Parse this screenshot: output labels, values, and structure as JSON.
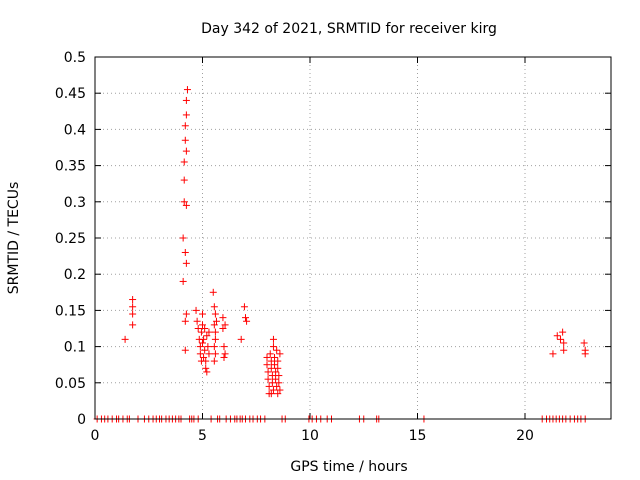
{
  "chart_data": {
    "type": "scatter",
    "title": "Day 342 of 2021, SRMTID for receiver kirg",
    "xlabel": "GPS time / hours",
    "ylabel": "SRMTID / TECUs",
    "xlim": [
      0,
      24
    ],
    "ylim": [
      0,
      0.5
    ],
    "grid": true,
    "marker": "+",
    "color": "#ff0000",
    "x_ticks": [
      0,
      5,
      10,
      15,
      20
    ],
    "x_tick_labels": [
      "0",
      "5",
      "10",
      "15",
      "20"
    ],
    "y_ticks": [
      0,
      0.05,
      0.1,
      0.15,
      0.2,
      0.25,
      0.3,
      0.35,
      0.4,
      0.45,
      0.5
    ],
    "y_tick_labels": [
      "0",
      "0.05",
      "0.1",
      "0.15",
      "0.2",
      "0.25",
      "0.3",
      "0.35",
      "0.4",
      "0.45",
      "0.5"
    ],
    "series": [
      {
        "name": "SRMTID",
        "points": [
          [
            1.4,
            0.11
          ],
          [
            1.75,
            0.165
          ],
          [
            1.75,
            0.155
          ],
          [
            1.75,
            0.145
          ],
          [
            1.75,
            0.13
          ],
          [
            4.1,
            0.19
          ],
          [
            4.1,
            0.25
          ],
          [
            4.15,
            0.3
          ],
          [
            4.15,
            0.33
          ],
          [
            4.15,
            0.355
          ],
          [
            4.2,
            0.385
          ],
          [
            4.2,
            0.405
          ],
          [
            4.25,
            0.42
          ],
          [
            4.25,
            0.44
          ],
          [
            4.3,
            0.455
          ],
          [
            4.25,
            0.37
          ],
          [
            4.25,
            0.295
          ],
          [
            4.2,
            0.23
          ],
          [
            4.25,
            0.215
          ],
          [
            4.2,
            0.135
          ],
          [
            4.2,
            0.095
          ],
          [
            4.25,
            0.145
          ],
          [
            4.7,
            0.15
          ],
          [
            4.75,
            0.135
          ],
          [
            4.8,
            0.125
          ],
          [
            4.85,
            0.11
          ],
          [
            4.9,
            0.1
          ],
          [
            4.9,
            0.09
          ],
          [
            4.95,
            0.12
          ],
          [
            5.0,
            0.145
          ],
          [
            5.0,
            0.13
          ],
          [
            5.0,
            0.105
          ],
          [
            5.05,
            0.085
          ],
          [
            5.1,
            0.125
          ],
          [
            5.1,
            0.095
          ],
          [
            5.15,
            0.08
          ],
          [
            5.15,
            0.07
          ],
          [
            5.2,
            0.065
          ],
          [
            5.2,
            0.115
          ],
          [
            5.25,
            0.1
          ],
          [
            5.3,
            0.09
          ],
          [
            4.95,
            0.08
          ],
          [
            5.05,
            0.11
          ],
          [
            5.3,
            0.12
          ],
          [
            5.5,
            0.175
          ],
          [
            5.55,
            0.155
          ],
          [
            5.6,
            0.145
          ],
          [
            5.55,
            0.13
          ],
          [
            5.6,
            0.12
          ],
          [
            5.6,
            0.11
          ],
          [
            5.55,
            0.1
          ],
          [
            5.6,
            0.09
          ],
          [
            5.55,
            0.08
          ],
          [
            5.65,
            0.135
          ],
          [
            5.95,
            0.14
          ],
          [
            5.95,
            0.125
          ],
          [
            6.0,
            0.1
          ],
          [
            6.05,
            0.09
          ],
          [
            6.0,
            0.085
          ],
          [
            6.05,
            0.13
          ],
          [
            6.8,
            0.11
          ],
          [
            6.95,
            0.155
          ],
          [
            7.0,
            0.14
          ],
          [
            7.05,
            0.135
          ],
          [
            8.0,
            0.085
          ],
          [
            8.0,
            0.075
          ],
          [
            8.05,
            0.065
          ],
          [
            8.05,
            0.055
          ],
          [
            8.1,
            0.045
          ],
          [
            8.1,
            0.035
          ],
          [
            8.15,
            0.09
          ],
          [
            8.2,
            0.08
          ],
          [
            8.2,
            0.07
          ],
          [
            8.25,
            0.06
          ],
          [
            8.25,
            0.05
          ],
          [
            8.3,
            0.04
          ],
          [
            8.3,
            0.11
          ],
          [
            8.3,
            0.1
          ],
          [
            8.35,
            0.085
          ],
          [
            8.35,
            0.075
          ],
          [
            8.4,
            0.065
          ],
          [
            8.4,
            0.055
          ],
          [
            8.45,
            0.045
          ],
          [
            8.45,
            0.095
          ],
          [
            8.5,
            0.08
          ],
          [
            8.5,
            0.07
          ],
          [
            8.55,
            0.06
          ],
          [
            8.55,
            0.05
          ],
          [
            8.6,
            0.04
          ],
          [
            8.6,
            0.09
          ],
          [
            8.2,
            0.035
          ],
          [
            8.5,
            0.035
          ],
          [
            21.3,
            0.09
          ],
          [
            21.5,
            0.115
          ],
          [
            21.65,
            0.11
          ],
          [
            21.75,
            0.12
          ],
          [
            21.8,
            0.105
          ],
          [
            21.8,
            0.095
          ],
          [
            22.75,
            0.105
          ],
          [
            22.8,
            0.095
          ],
          [
            22.8,
            0.09
          ],
          [
            0.1,
            0
          ],
          [
            0.3,
            0
          ],
          [
            0.45,
            0
          ],
          [
            0.6,
            0
          ],
          [
            0.8,
            0
          ],
          [
            1.0,
            0
          ],
          [
            1.1,
            0
          ],
          [
            1.3,
            0
          ],
          [
            1.5,
            0
          ],
          [
            1.6,
            0
          ],
          [
            2.0,
            0
          ],
          [
            2.3,
            0
          ],
          [
            2.5,
            0
          ],
          [
            2.7,
            0
          ],
          [
            2.85,
            0
          ],
          [
            3.0,
            0
          ],
          [
            3.1,
            0
          ],
          [
            3.3,
            0
          ],
          [
            3.45,
            0
          ],
          [
            3.6,
            0
          ],
          [
            3.75,
            0
          ],
          [
            3.9,
            0
          ],
          [
            4.0,
            0
          ],
          [
            4.4,
            0
          ],
          [
            4.5,
            0
          ],
          [
            4.6,
            0
          ],
          [
            4.8,
            0
          ],
          [
            5.4,
            0
          ],
          [
            5.7,
            0
          ],
          [
            5.8,
            0
          ],
          [
            6.1,
            0
          ],
          [
            6.3,
            0
          ],
          [
            6.5,
            0
          ],
          [
            6.6,
            0
          ],
          [
            6.75,
            0
          ],
          [
            6.85,
            0
          ],
          [
            7.0,
            0
          ],
          [
            7.2,
            0
          ],
          [
            7.35,
            0
          ],
          [
            7.55,
            0
          ],
          [
            7.7,
            0
          ],
          [
            7.9,
            0
          ],
          [
            8.7,
            0
          ],
          [
            8.85,
            0
          ],
          [
            9.95,
            0
          ],
          [
            10.1,
            0
          ],
          [
            10.3,
            0
          ],
          [
            10.5,
            0
          ],
          [
            10.8,
            0
          ],
          [
            11.0,
            0
          ],
          [
            12.3,
            0
          ],
          [
            12.5,
            0
          ],
          [
            13.1,
            0
          ],
          [
            13.2,
            0
          ],
          [
            15.3,
            0
          ],
          [
            20.8,
            0
          ],
          [
            21.0,
            0
          ],
          [
            21.15,
            0
          ],
          [
            21.3,
            0
          ],
          [
            21.45,
            0
          ],
          [
            21.6,
            0
          ],
          [
            21.75,
            0
          ],
          [
            21.9,
            0
          ],
          [
            22.1,
            0
          ],
          [
            22.3,
            0
          ],
          [
            22.45,
            0
          ],
          [
            22.6,
            0
          ],
          [
            22.8,
            0
          ]
        ]
      }
    ]
  }
}
